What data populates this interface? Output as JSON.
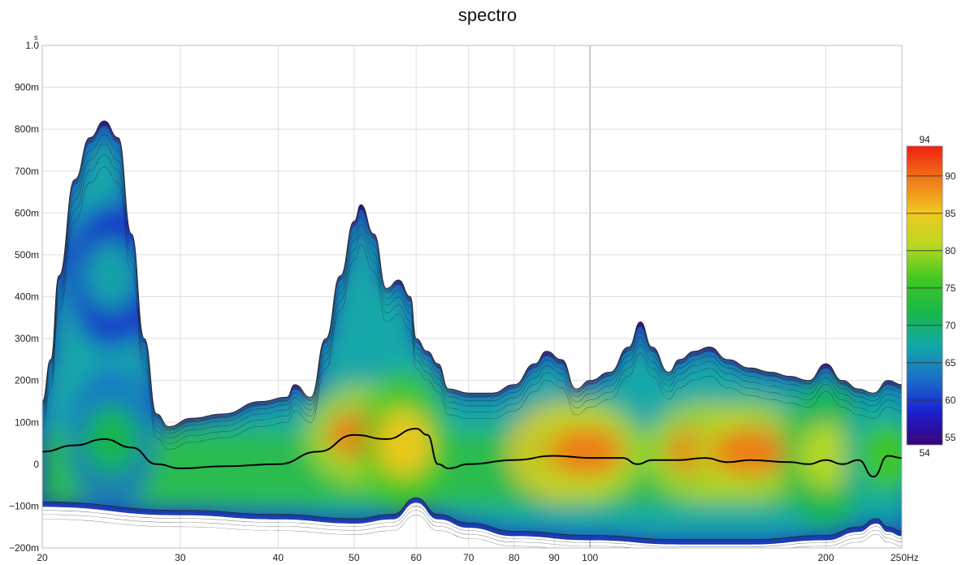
{
  "chart_data": {
    "type": "heatmap",
    "title": "spectro",
    "x_scale": "log",
    "x_unit": "Hz",
    "y_unit": "s",
    "xlim": [
      20,
      250
    ],
    "ylim": [
      -0.2,
      1.0
    ],
    "x_ticks": [
      {
        "value": 20,
        "label": "20"
      },
      {
        "value": 30,
        "label": "30"
      },
      {
        "value": 40,
        "label": "40"
      },
      {
        "value": 50,
        "label": "50"
      },
      {
        "value": 60,
        "label": "60"
      },
      {
        "value": 70,
        "label": "70"
      },
      {
        "value": 80,
        "label": "80"
      },
      {
        "value": 90,
        "label": "90"
      },
      {
        "value": 100,
        "label": "100"
      },
      {
        "value": 200,
        "label": "200"
      },
      {
        "value": 250,
        "label": "250Hz"
      }
    ],
    "y_ticks": [
      {
        "value": 1.0,
        "label": "1.0"
      },
      {
        "value": 0.9,
        "label": "900m"
      },
      {
        "value": 0.8,
        "label": "800m"
      },
      {
        "value": 0.7,
        "label": "700m"
      },
      {
        "value": 0.6,
        "label": "600m"
      },
      {
        "value": 0.5,
        "label": "500m"
      },
      {
        "value": 0.4,
        "label": "400m"
      },
      {
        "value": 0.3,
        "label": "300m"
      },
      {
        "value": 0.2,
        "label": "200m"
      },
      {
        "value": 0.1,
        "label": "100m"
      },
      {
        "value": 0.0,
        "label": "0"
      },
      {
        "value": -0.1,
        "label": "−100m"
      },
      {
        "value": -0.2,
        "label": "−200m"
      }
    ],
    "grid": true,
    "colorbar": {
      "min": 54,
      "max": 94,
      "ticks": [
        "94",
        "90",
        "85",
        "80",
        "75",
        "70",
        "65",
        "60",
        "55",
        "54"
      ],
      "tick_values": [
        94,
        90,
        85,
        80,
        75,
        70,
        65,
        60,
        55,
        54
      ],
      "colors": [
        "#3a007a",
        "#1b20d0",
        "#1a70c8",
        "#12a8a8",
        "#18b848",
        "#40c820",
        "#b8d820",
        "#f0c820",
        "#f07818",
        "#f02010"
      ]
    },
    "envelope_top": [
      [
        20,
        0.15
      ],
      [
        20.5,
        0.25
      ],
      [
        21,
        0.45
      ],
      [
        22,
        0.68
      ],
      [
        23,
        0.78
      ],
      [
        24,
        0.82
      ],
      [
        25,
        0.78
      ],
      [
        26,
        0.55
      ],
      [
        27,
        0.3
      ],
      [
        28,
        0.12
      ],
      [
        29,
        0.09
      ],
      [
        31,
        0.11
      ],
      [
        34,
        0.12
      ],
      [
        38,
        0.15
      ],
      [
        41,
        0.16
      ],
      [
        42,
        0.19
      ],
      [
        44,
        0.16
      ],
      [
        46,
        0.3
      ],
      [
        48,
        0.45
      ],
      [
        50,
        0.58
      ],
      [
        51,
        0.62
      ],
      [
        53,
        0.55
      ],
      [
        55,
        0.42
      ],
      [
        57,
        0.44
      ],
      [
        59,
        0.4
      ],
      [
        60,
        0.3
      ],
      [
        62,
        0.27
      ],
      [
        64,
        0.24
      ],
      [
        66,
        0.18
      ],
      [
        70,
        0.17
      ],
      [
        75,
        0.17
      ],
      [
        80,
        0.19
      ],
      [
        85,
        0.24
      ],
      [
        88,
        0.27
      ],
      [
        92,
        0.25
      ],
      [
        96,
        0.18
      ],
      [
        100,
        0.2
      ],
      [
        106,
        0.22
      ],
      [
        112,
        0.28
      ],
      [
        116,
        0.34
      ],
      [
        120,
        0.28
      ],
      [
        126,
        0.22
      ],
      [
        130,
        0.25
      ],
      [
        136,
        0.27
      ],
      [
        142,
        0.28
      ],
      [
        150,
        0.25
      ],
      [
        160,
        0.23
      ],
      [
        170,
        0.22
      ],
      [
        180,
        0.21
      ],
      [
        190,
        0.2
      ],
      [
        200,
        0.24
      ],
      [
        210,
        0.2
      ],
      [
        220,
        0.18
      ],
      [
        230,
        0.17
      ],
      [
        240,
        0.2
      ],
      [
        250,
        0.19
      ]
    ],
    "envelope_bottom": [
      [
        20,
        -0.09
      ],
      [
        30,
        -0.11
      ],
      [
        40,
        -0.12
      ],
      [
        50,
        -0.13
      ],
      [
        56,
        -0.12
      ],
      [
        60,
        -0.08
      ],
      [
        64,
        -0.12
      ],
      [
        70,
        -0.14
      ],
      [
        80,
        -0.16
      ],
      [
        100,
        -0.17
      ],
      [
        130,
        -0.18
      ],
      [
        160,
        -0.18
      ],
      [
        200,
        -0.17
      ],
      [
        220,
        -0.15
      ],
      [
        232,
        -0.13
      ],
      [
        240,
        -0.15
      ],
      [
        250,
        -0.16
      ]
    ],
    "peak_regions": [
      {
        "x": 24.5,
        "y": 0.06,
        "level": 71
      },
      {
        "x": 24.5,
        "y": 0.45,
        "level": 68
      },
      {
        "x": 51.5,
        "y": 0.07,
        "level": 88
      },
      {
        "x": 58,
        "y": 0.05,
        "level": 84
      },
      {
        "x": 93,
        "y": 0.03,
        "level": 91
      },
      {
        "x": 99,
        "y": 0.03,
        "level": 90
      },
      {
        "x": 140,
        "y": 0.03,
        "level": 89
      },
      {
        "x": 160,
        "y": 0.03,
        "level": 90
      },
      {
        "x": 200,
        "y": 0.02,
        "level": 80
      },
      {
        "x": 240,
        "y": 0.02,
        "level": 77
      }
    ],
    "ridge_line": [
      [
        20,
        0.03
      ],
      [
        22,
        0.045
      ],
      [
        24,
        0.06
      ],
      [
        26,
        0.04
      ],
      [
        28,
        0.0
      ],
      [
        30,
        -0.01
      ],
      [
        34,
        -0.005
      ],
      [
        40,
        0.0
      ],
      [
        45,
        0.03
      ],
      [
        50,
        0.07
      ],
      [
        55,
        0.06
      ],
      [
        60,
        0.085
      ],
      [
        62,
        0.07
      ],
      [
        64,
        0.0
      ],
      [
        66,
        -0.01
      ],
      [
        70,
        0.0
      ],
      [
        80,
        0.01
      ],
      [
        90,
        0.02
      ],
      [
        100,
        0.015
      ],
      [
        110,
        0.015
      ],
      [
        115,
        0.0
      ],
      [
        120,
        0.01
      ],
      [
        130,
        0.01
      ],
      [
        140,
        0.015
      ],
      [
        150,
        0.005
      ],
      [
        160,
        0.01
      ],
      [
        180,
        0.005
      ],
      [
        190,
        0.0
      ],
      [
        200,
        0.01
      ],
      [
        210,
        0.0
      ],
      [
        220,
        0.01
      ],
      [
        230,
        -0.03
      ],
      [
        240,
        0.02
      ],
      [
        250,
        0.015
      ]
    ]
  }
}
